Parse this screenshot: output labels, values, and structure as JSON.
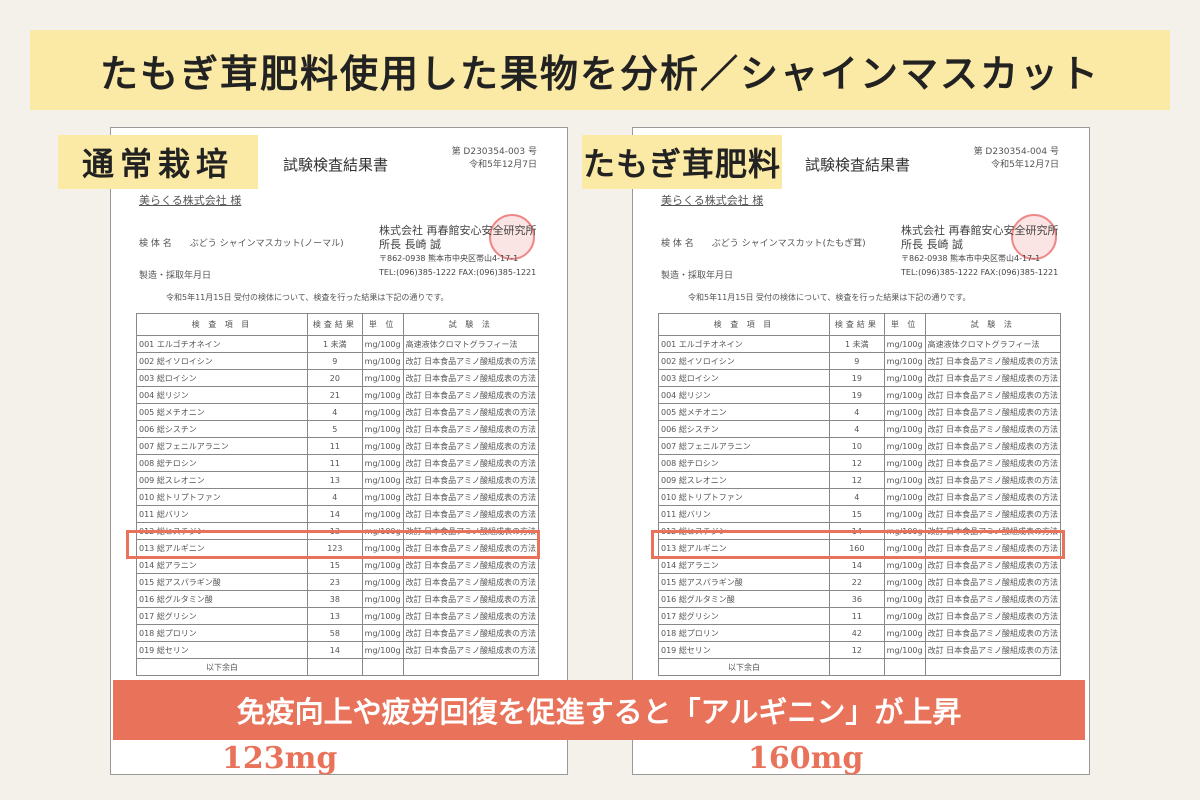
{
  "banner": "たもぎ茸肥料使用した果物を分析／シャインマスカット",
  "bottom": "免疫向上や疲労回復を促進すると「アルギニン」が上昇",
  "colors": {
    "accent": "#e8735a",
    "highlight": "#fbeaa5"
  },
  "docs": [
    {
      "tag": "通常栽培",
      "title": "試験検査結果書",
      "no": "第 D230354-003 号",
      "date": "令和5年12月7日",
      "client": "美らくる株式会社 様",
      "lab": "株式会社 再春館安心安全研究所",
      "head": "所長 長崎 誠",
      "addr": "〒862-0938 熊本市中央区帯山4-17-1",
      "tel": "TEL:(096)385-1222 FAX:(096)385-1221",
      "specimen": "検 体 名　　ぶどう シャインマスカット(ノーマル)",
      "mfg": "製造・採取年月日",
      "note": "令和5年11月15日 受付の検体について、検査を行った結果は下記の通りです。",
      "highlight_value": "123mg",
      "values": [
        "1 未満",
        "9",
        "20",
        "21",
        "4",
        "5",
        "11",
        "11",
        "13",
        "4",
        "14",
        "13",
        "123",
        "15",
        "23",
        "38",
        "13",
        "58",
        "14"
      ]
    },
    {
      "tag": "たもぎ茸肥料",
      "title": "試験検査結果書",
      "no": "第 D230354-004 号",
      "date": "令和5年12月7日",
      "client": "美らくる株式会社 様",
      "lab": "株式会社 再春館安心安全研究所",
      "head": "所長 長崎 誠",
      "addr": "〒862-0938 熊本市中央区帯山4-17-1",
      "tel": "TEL:(096)385-1222 FAX:(096)385-1221",
      "specimen": "検 体 名　　ぶどう シャインマスカット(たもぎ茸)",
      "mfg": "製造・採取年月日",
      "note": "令和5年11月15日 受付の検体について、検査を行った結果は下記の通りです。",
      "highlight_value": "160mg",
      "values": [
        "1 未満",
        "9",
        "19",
        "19",
        "4",
        "4",
        "10",
        "12",
        "12",
        "4",
        "15",
        "14",
        "160",
        "14",
        "22",
        "36",
        "11",
        "42",
        "12"
      ]
    }
  ],
  "table": {
    "headers": [
      "検 査 項 目",
      "検査結果",
      "単 位",
      "試 験 法"
    ],
    "unit": "mg/100g",
    "methods": [
      "高速液体クロマトグラフィー法",
      "改訂 日本食品アミノ酸組成表の方法"
    ],
    "items": [
      "001 エルゴチオネイン",
      "002 総イソロイシン",
      "003 総ロイシン",
      "004 総リジン",
      "005 総メチオニン",
      "006 総シスチン",
      "007 総フェニルアラニン",
      "008 総チロシン",
      "009 総スレオニン",
      "010 総トリプトファン",
      "011 総バリン",
      "012 総ヒスチジン",
      "013 総アルギニン",
      "014 総アラニン",
      "015 総アスパラギン酸",
      "016 総グルタミン酸",
      "017 総グリシン",
      "018 総プロリン",
      "019 総セリン"
    ],
    "footer": "以下余白"
  }
}
